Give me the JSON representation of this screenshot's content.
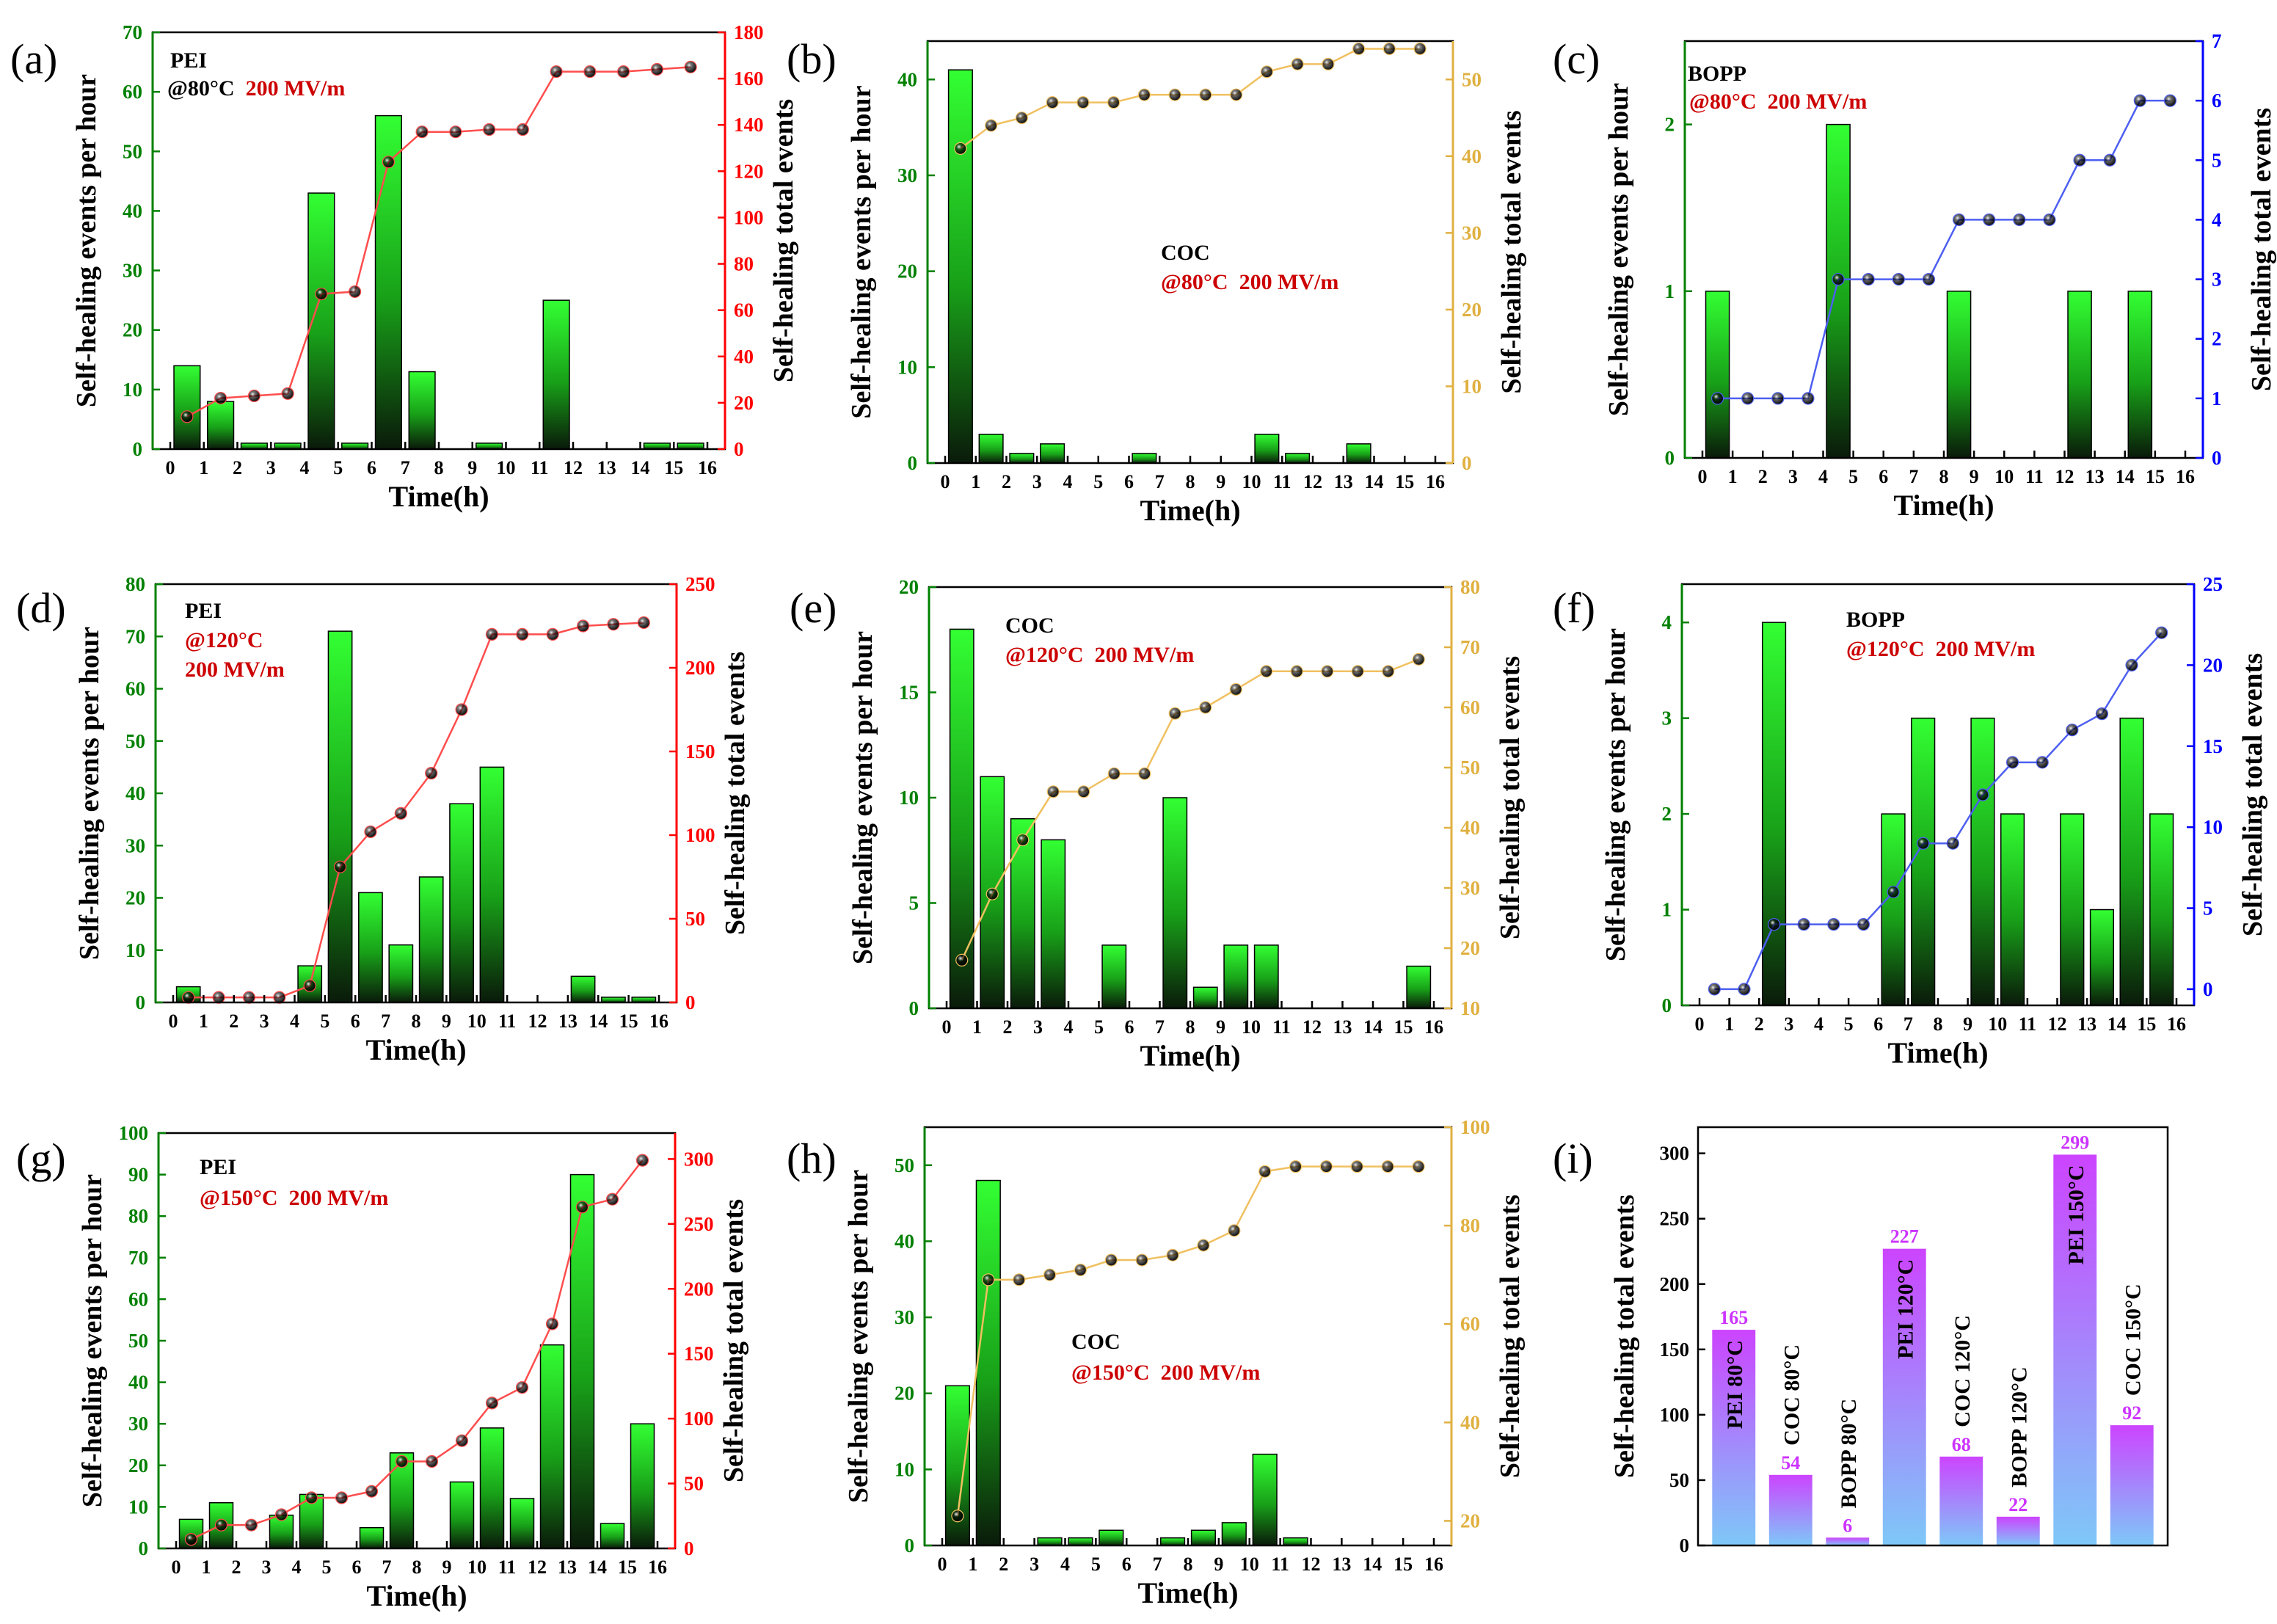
{
  "colors": {
    "bar_top": "#33ff33",
    "bar_bottom": "#0a1a0a",
    "green_axis": "#008000",
    "red_line": "#ff4d4d",
    "red_axis": "#ff0000",
    "gold_line": "#f0c060",
    "gold_axis": "#e0b040",
    "blue_line": "#4d5ff0",
    "blue_axis": "#0000ff",
    "dark_red_text": "#cc0000",
    "magenta": "#cc33ff",
    "sky_blue": "#7ec8f8"
  },
  "chart_data": [
    {
      "id": "a",
      "type": "bar+line",
      "panel_label": "(a)",
      "xlabel": "Time(h)",
      "ylabel": "Self-healing events per hour",
      "y2label": "Self-healing total events",
      "xticks": [
        "0",
        "1",
        "2",
        "3",
        "4",
        "5",
        "6",
        "7",
        "8",
        "9",
        "10",
        "11",
        "12",
        "13",
        "14",
        "15",
        "16"
      ],
      "ylim": [
        0,
        70
      ],
      "yticks": [
        0,
        10,
        20,
        30,
        40,
        50,
        60,
        70
      ],
      "y2lim": [
        0,
        180
      ],
      "y2ticks": [
        0,
        20,
        40,
        60,
        80,
        100,
        120,
        140,
        160,
        180
      ],
      "bar_values": [
        14,
        8,
        1,
        1,
        43,
        1,
        56,
        13,
        0,
        1,
        0,
        25,
        0,
        0,
        1,
        1
      ],
      "line_values": [
        14,
        22,
        23,
        24,
        67,
        68,
        124,
        137,
        137,
        138,
        138,
        163,
        163,
        163,
        164,
        165
      ],
      "line_color_key": "red_line",
      "axis2_color_key": "red_axis",
      "annotations": [
        {
          "lines": [
            [
              {
                "text": "PEI",
                "color": "#000000"
              }
            ],
            [
              {
                "text": "@80°C",
                "color": "#000000"
              },
              {
                "text": "200 MV/m",
                "color": "#cc0000"
              }
            ]
          ]
        }
      ]
    },
    {
      "id": "b",
      "type": "bar+line",
      "panel_label": "(b)",
      "xlabel": "Time(h)",
      "ylabel": "Self-healing events per hour",
      "y2label": "Self-healing total events",
      "xticks": [
        "0",
        "1",
        "2",
        "3",
        "4",
        "5",
        "6",
        "7",
        "8",
        "9",
        "10",
        "11",
        "12",
        "13",
        "14",
        "15",
        "16"
      ],
      "ylim": [
        0,
        44
      ],
      "yticks": [
        0,
        10,
        20,
        30,
        40
      ],
      "y2lim": [
        0,
        55
      ],
      "y2ticks": [
        0,
        10,
        20,
        30,
        40,
        50
      ],
      "bar_values": [
        41,
        3,
        1,
        2,
        0,
        0,
        1,
        0,
        0,
        0,
        3,
        1,
        0,
        2,
        0,
        0
      ],
      "line_values": [
        41,
        44,
        45,
        47,
        47,
        47,
        48,
        48,
        48,
        48,
        51,
        52,
        52,
        54,
        54,
        54
      ],
      "line_color_key": "gold_line",
      "axis2_color_key": "gold_axis",
      "annotations": [
        {
          "lines": [
            [
              {
                "text": "COC",
                "color": "#000000"
              }
            ],
            [
              {
                "text": "@80°C",
                "color": "#cc0000"
              },
              {
                "text": "200 MV/m",
                "color": "#cc0000"
              }
            ]
          ]
        }
      ]
    },
    {
      "id": "c",
      "type": "bar+line",
      "panel_label": "(c)",
      "xlabel": "Time(h)",
      "ylabel": "Self-healing events per hour",
      "y2label": "Self-healing total events",
      "xticks": [
        "0",
        "1",
        "2",
        "3",
        "4",
        "5",
        "6",
        "7",
        "8",
        "9",
        "10",
        "11",
        "12",
        "13",
        "14",
        "15",
        "16"
      ],
      "ylim": [
        0,
        2.5
      ],
      "yticks": [
        0,
        1,
        2
      ],
      "y2lim": [
        0,
        7
      ],
      "y2ticks": [
        0,
        1,
        2,
        3,
        4,
        5,
        6,
        7
      ],
      "bar_values": [
        1,
        0,
        0,
        0,
        2,
        0,
        0,
        0,
        1,
        0,
        0,
        0,
        1,
        0,
        1,
        0
      ],
      "line_values": [
        1,
        1,
        1,
        1,
        3,
        3,
        3,
        3,
        4,
        4,
        4,
        4,
        5,
        5,
        6,
        6
      ],
      "line_color_key": "blue_line",
      "axis2_color_key": "blue_axis",
      "annotations": [
        {
          "lines": [
            [
              {
                "text": "BOPP",
                "color": "#000000"
              }
            ],
            [
              {
                "text": "@80°C",
                "color": "#cc0000"
              },
              {
                "text": "200 MV/m",
                "color": "#cc0000"
              }
            ]
          ]
        }
      ]
    },
    {
      "id": "d",
      "type": "bar+line",
      "panel_label": "(d)",
      "xlabel": "Time(h)",
      "ylabel": "Self-healing events per hour",
      "y2label": "Self-healing total events",
      "xticks": [
        "0",
        "1",
        "2",
        "3",
        "4",
        "5",
        "6",
        "7",
        "8",
        "9",
        "10",
        "11",
        "12",
        "13",
        "14",
        "15",
        "16"
      ],
      "ylim": [
        0,
        80
      ],
      "yticks": [
        0,
        10,
        20,
        30,
        40,
        50,
        60,
        70,
        80
      ],
      "y2lim": [
        0,
        250
      ],
      "y2ticks": [
        0,
        50,
        100,
        150,
        200,
        250
      ],
      "bar_values": [
        3,
        0,
        0,
        0,
        7,
        71,
        21,
        11,
        24,
        38,
        45,
        0,
        0,
        5,
        1,
        1
      ],
      "line_values": [
        3,
        3,
        3,
        3,
        10,
        81,
        102,
        113,
        137,
        175,
        220,
        220,
        220,
        225,
        226,
        227
      ],
      "line_color_key": "red_line",
      "axis2_color_key": "red_axis",
      "annotations": [
        {
          "lines": [
            [
              {
                "text": "PEI",
                "color": "#000000"
              }
            ],
            [
              {
                "text": "@120°C",
                "color": "#cc0000"
              }
            ],
            [
              {
                "text": "200 MV/m",
                "color": "#cc0000"
              }
            ]
          ]
        }
      ]
    },
    {
      "id": "e",
      "type": "bar+line",
      "panel_label": "(e)",
      "xlabel": "Time(h)",
      "ylabel": "Self-healing events per hour",
      "y2label": "Self-healing total events",
      "xticks": [
        "0",
        "1",
        "2",
        "3",
        "4",
        "5",
        "6",
        "7",
        "8",
        "9",
        "10",
        "11",
        "12",
        "13",
        "14",
        "15",
        "16"
      ],
      "ylim": [
        0,
        20
      ],
      "yticks": [
        0,
        5,
        10,
        15,
        20
      ],
      "y2lim": [
        10,
        80
      ],
      "y2ticks": [
        10,
        20,
        30,
        40,
        50,
        60,
        70,
        80
      ],
      "bar_values": [
        18,
        11,
        9,
        8,
        0,
        3,
        0,
        10,
        1,
        3,
        3,
        0,
        0,
        0,
        0,
        2
      ],
      "line_values": [
        18,
        29,
        38,
        46,
        46,
        49,
        49,
        59,
        60,
        63,
        66,
        66,
        66,
        66,
        66,
        68
      ],
      "line_color_key": "gold_line",
      "axis2_color_key": "gold_axis",
      "annotations": [
        {
          "lines": [
            [
              {
                "text": "COC",
                "color": "#000000"
              }
            ],
            [
              {
                "text": "@120°C",
                "color": "#cc0000"
              },
              {
                "text": "200 MV/m",
                "color": "#cc0000"
              }
            ]
          ]
        }
      ]
    },
    {
      "id": "f",
      "type": "bar+line",
      "panel_label": "(f)",
      "xlabel": "Time(h)",
      "ylabel": "Self-healing events per hour",
      "y2label": "Self-healing total events",
      "xticks": [
        "0",
        "1",
        "2",
        "3",
        "4",
        "5",
        "6",
        "7",
        "8",
        "9",
        "10",
        "11",
        "12",
        "13",
        "14",
        "15",
        "16"
      ],
      "ylim": [
        0,
        4.4
      ],
      "yticks": [
        0,
        1,
        2,
        3,
        4
      ],
      "y2lim": [
        -1,
        25
      ],
      "y2ticks": [
        0,
        5,
        10,
        15,
        20,
        25
      ],
      "bar_values": [
        0,
        0,
        4,
        0,
        0,
        0,
        2,
        3,
        0,
        3,
        2,
        0,
        2,
        1,
        3,
        2
      ],
      "line_values": [
        0,
        0,
        4,
        4,
        4,
        4,
        6,
        9,
        9,
        12,
        14,
        14,
        16,
        17,
        20,
        22
      ],
      "line_color_key": "blue_line",
      "axis2_color_key": "blue_axis",
      "annotations": [
        {
          "lines": [
            [
              {
                "text": "BOPP",
                "color": "#000000"
              }
            ],
            [
              {
                "text": "@120°C",
                "color": "#cc0000"
              },
              {
                "text": "200 MV/m",
                "color": "#cc0000"
              }
            ]
          ]
        }
      ]
    },
    {
      "id": "g",
      "type": "bar+line",
      "panel_label": "(g)",
      "xlabel": "Time(h)",
      "ylabel": "Self-healing events per hour",
      "y2label": "Self-healing total events",
      "xticks": [
        "0",
        "1",
        "2",
        "3",
        "4",
        "5",
        "6",
        "7",
        "8",
        "9",
        "10",
        "11",
        "12",
        "13",
        "14",
        "15",
        "16"
      ],
      "ylim": [
        0,
        100
      ],
      "yticks": [
        0,
        10,
        20,
        30,
        40,
        50,
        60,
        70,
        80,
        90,
        100
      ],
      "y2lim": [
        0,
        320
      ],
      "y2ticks": [
        0,
        50,
        100,
        150,
        200,
        250,
        300
      ],
      "bar_values": [
        7,
        11,
        0,
        8,
        13,
        0,
        5,
        23,
        0,
        16,
        29,
        12,
        49,
        90,
        6,
        30
      ],
      "line_values": [
        7,
        18,
        18,
        26,
        39,
        39,
        44,
        67,
        67,
        83,
        112,
        124,
        173,
        263,
        269,
        299
      ],
      "line_color_key": "red_line",
      "axis2_color_key": "red_axis",
      "annotations": [
        {
          "lines": [
            [
              {
                "text": "PEI",
                "color": "#000000"
              }
            ],
            [
              {
                "text": "@150°C",
                "color": "#cc0000"
              },
              {
                "text": "200 MV/m",
                "color": "#cc0000"
              }
            ]
          ]
        }
      ]
    },
    {
      "id": "h",
      "type": "bar+line",
      "panel_label": "(h)",
      "xlabel": "Time(h)",
      "ylabel": "Self-healing events per hour",
      "y2label": "Self-healing total events",
      "xticks": [
        "0",
        "1",
        "2",
        "3",
        "4",
        "5",
        "6",
        "7",
        "8",
        "9",
        "10",
        "11",
        "12",
        "13",
        "14",
        "15",
        "16"
      ],
      "ylim": [
        0,
        55
      ],
      "yticks": [
        0,
        10,
        20,
        30,
        40,
        50
      ],
      "y2lim": [
        15,
        100
      ],
      "y2ticks": [
        20,
        40,
        60,
        80,
        100
      ],
      "bar_values": [
        21,
        48,
        0,
        1,
        1,
        2,
        0,
        1,
        2,
        3,
        12,
        1,
        0,
        0,
        0,
        0
      ],
      "line_values": [
        21,
        69,
        69,
        70,
        71,
        73,
        73,
        74,
        76,
        79,
        91,
        92,
        92,
        92,
        92,
        92
      ],
      "line_color_key": "gold_line",
      "axis2_color_key": "gold_axis",
      "annotations": [
        {
          "lines": [
            [
              {
                "text": "COC",
                "color": "#000000"
              }
            ],
            [
              {
                "text": "@150°C",
                "color": "#cc0000"
              },
              {
                "text": "200 MV/m",
                "color": "#cc0000"
              }
            ]
          ]
        }
      ]
    },
    {
      "id": "i",
      "type": "bar",
      "panel_label": "(i)",
      "ylabel": "Self-healing total events",
      "ylim": [
        0,
        320
      ],
      "yticks": [
        0,
        50,
        100,
        150,
        200,
        250,
        300
      ],
      "categories": [
        "PEI 80°C",
        "COC 80°C",
        "BOPP 80°C",
        "PEI 120°C",
        "COC 120°C",
        "BOPP 120°C",
        "PEI 150°C",
        "COC 150°C"
      ],
      "values": [
        165,
        54,
        6,
        227,
        68,
        22,
        299,
        92
      ],
      "labels": [
        "165",
        "54",
        "6",
        "227",
        "68",
        "22",
        "299",
        "92"
      ]
    }
  ]
}
